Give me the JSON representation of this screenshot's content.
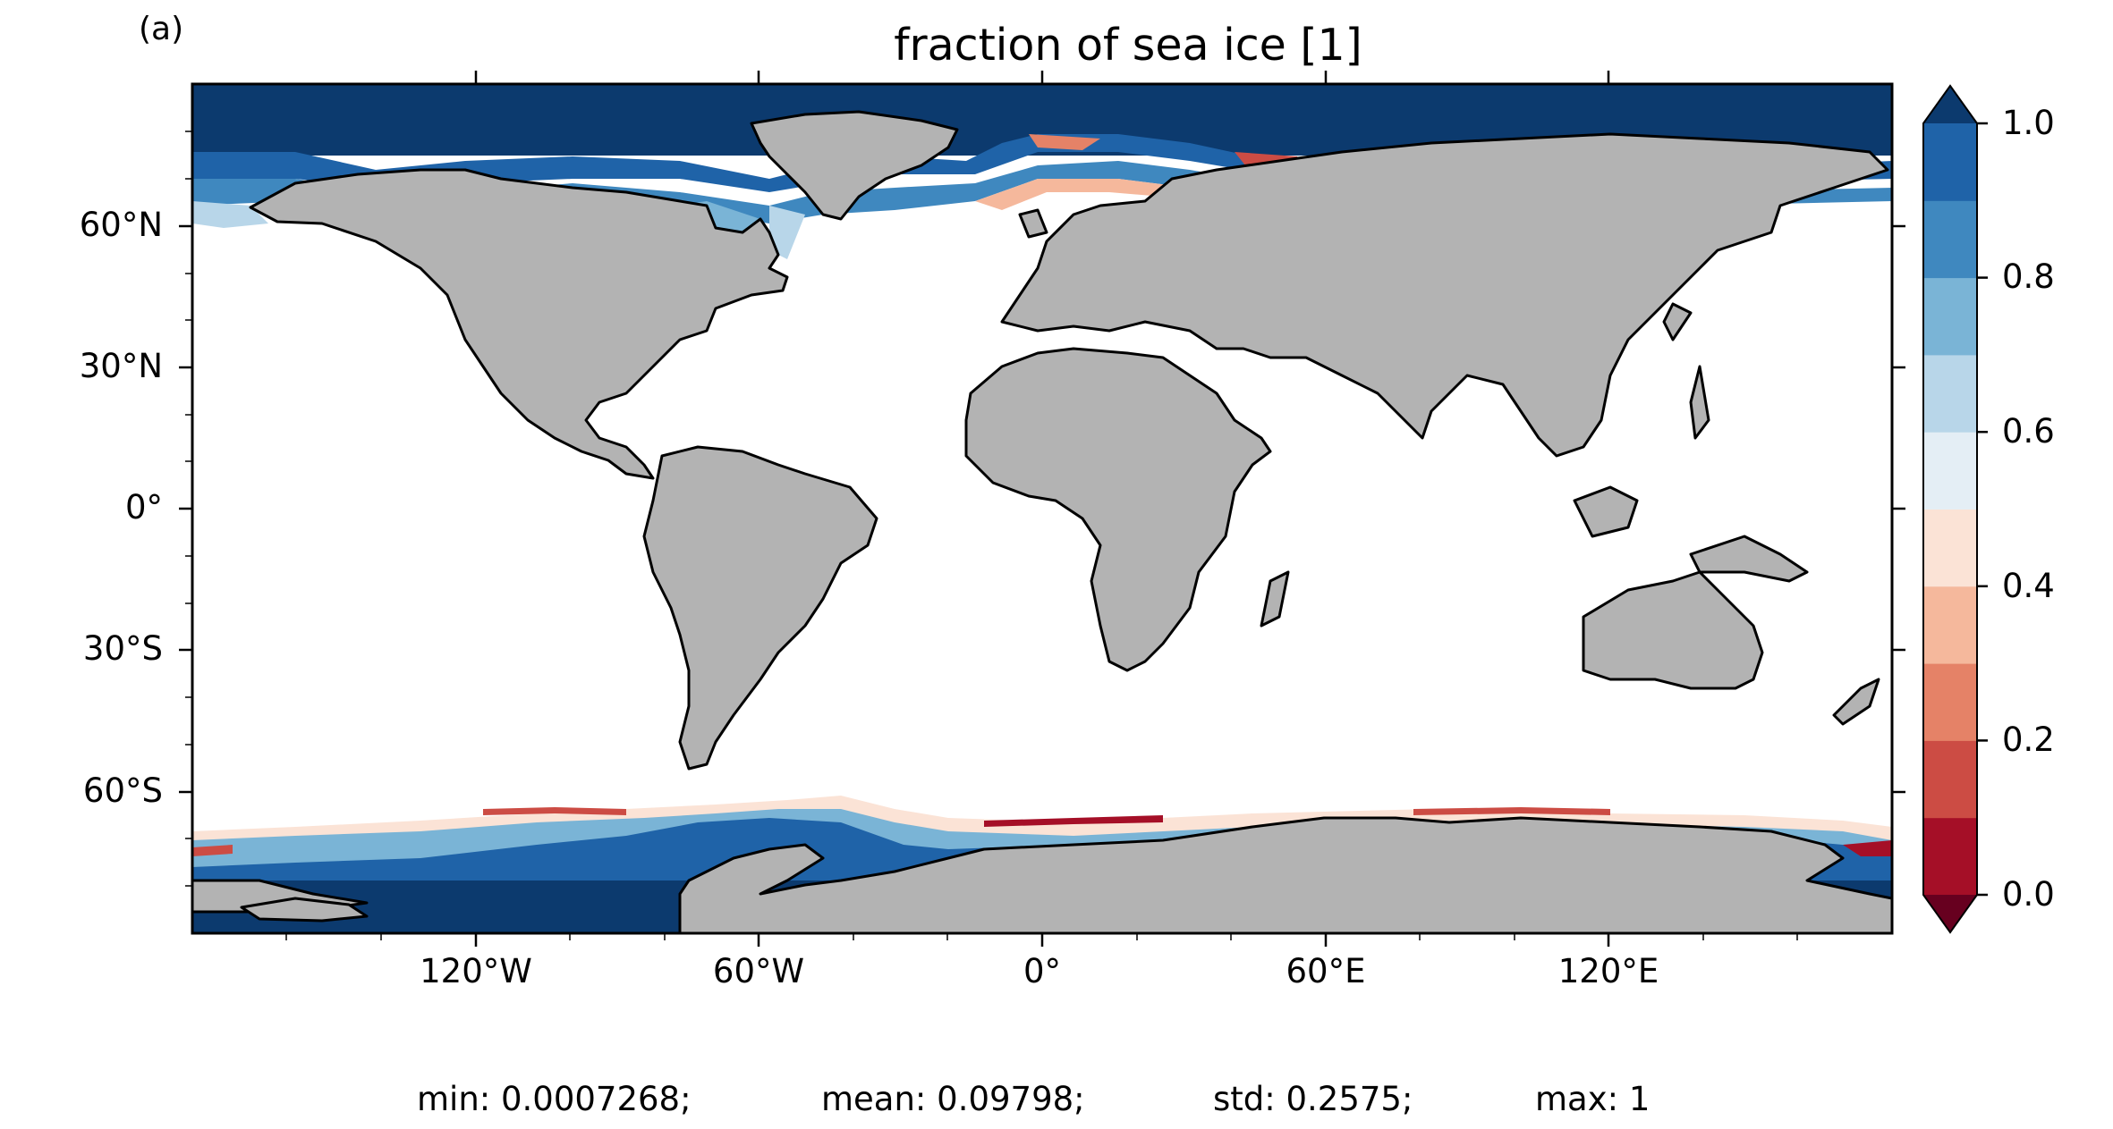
{
  "panel_label": "(a)",
  "title": "fraction of sea ice [1]",
  "map": {
    "projection": "plate-carree",
    "land_color": "#b3b3b3",
    "ocean_color": "#ffffff",
    "coastline_color": "#000000",
    "lon_range": [
      -180,
      180
    ],
    "lat_range": [
      -90,
      90
    ],
    "x_ticks": [
      "120°W",
      "60°W",
      "0°",
      "60°E",
      "120°E"
    ],
    "y_ticks": [
      "60°N",
      "30°N",
      "0°",
      "30°S",
      "60°S"
    ]
  },
  "colorbar": {
    "ticks": [
      "1.0",
      "0.8",
      "0.6",
      "0.4",
      "0.2",
      "0.0"
    ],
    "range": [
      0,
      1
    ],
    "extend": "both",
    "colors": [
      "#a50f27",
      "#cc4c44",
      "#e58267",
      "#f5b89c",
      "#fbe3d6",
      "#e4eef5",
      "#b8d6e9",
      "#7ab4d6",
      "#3f88bf",
      "#1f63a8"
    ],
    "under_color": "#67001f",
    "over_color": "#0c3a6e"
  },
  "stats": {
    "min": "min: 0.0007268;",
    "mean": "mean: 0.09798;",
    "std": "std: 0.2575;",
    "max": "max: 1"
  }
}
